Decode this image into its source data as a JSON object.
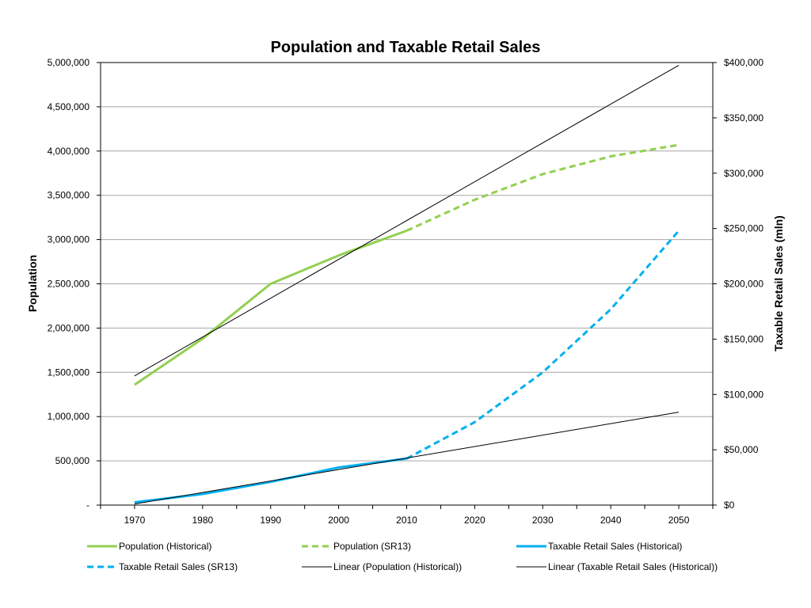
{
  "chart_data": {
    "type": "line",
    "title": "Population and Taxable Retail Sales",
    "ylabel": "Population",
    "y2label": "Taxable Retail Sales (mln)",
    "x": [
      1970,
      1980,
      1990,
      2000,
      2010,
      2020,
      2030,
      2040,
      2050
    ],
    "x_tick_labels": [
      "1970",
      "1980",
      "1990",
      "2000",
      "2010",
      "2020",
      "2030",
      "2040",
      "2050"
    ],
    "ylim": [
      0,
      5000000
    ],
    "y_tick_labels": [
      "-",
      "500,000",
      "1,000,000",
      "1,500,000",
      "2,000,000",
      "2,500,000",
      "3,000,000",
      "3,500,000",
      "4,000,000",
      "4,500,000",
      "5,000,000"
    ],
    "y2lim": [
      0,
      400000
    ],
    "y2_tick_labels": [
      "$0",
      "$50,000",
      "$100,000",
      "$150,000",
      "$200,000",
      "$250,000",
      "$300,000",
      "$350,000",
      "$400,000"
    ],
    "grid": true,
    "legend_position": "bottom",
    "series": [
      {
        "name": "Population (Historical)",
        "axis": "left",
        "color": "#92D050",
        "style": "solid",
        "x": [
          1970,
          1980,
          1990,
          2000,
          2010
        ],
        "values": [
          1360000,
          1880000,
          2500000,
          2820000,
          3100000
        ]
      },
      {
        "name": "Population (SR13)",
        "axis": "left",
        "color": "#92D050",
        "style": "dashed",
        "x": [
          2010,
          2020,
          2030,
          2040,
          2050
        ],
        "values": [
          3100000,
          3450000,
          3740000,
          3940000,
          4070000
        ]
      },
      {
        "name": "Taxable Retail Sales (Historical)",
        "axis": "right",
        "color": "#00B0F0",
        "style": "solid",
        "x": [
          1970,
          1980,
          1990,
          2000,
          2010
        ],
        "values": [
          2500,
          10000,
          21000,
          34000,
          42000
        ]
      },
      {
        "name": "Taxable Retail Sales (SR13)",
        "axis": "right",
        "color": "#00B0F0",
        "style": "dashed",
        "x": [
          2010,
          2020,
          2030,
          2040,
          2050
        ],
        "values": [
          42000,
          75000,
          120000,
          177000,
          248000
        ]
      },
      {
        "name": "Linear (Population (Historical))",
        "axis": "left",
        "color": "#000000",
        "style": "trend",
        "x": [
          1970,
          2050
        ],
        "values": [
          1460000,
          4970000
        ]
      },
      {
        "name": "Linear (Taxable Retail Sales (Historical))",
        "axis": "right",
        "color": "#000000",
        "style": "trend",
        "x": [
          1970,
          2050
        ],
        "values": [
          1000,
          84000
        ]
      }
    ]
  }
}
